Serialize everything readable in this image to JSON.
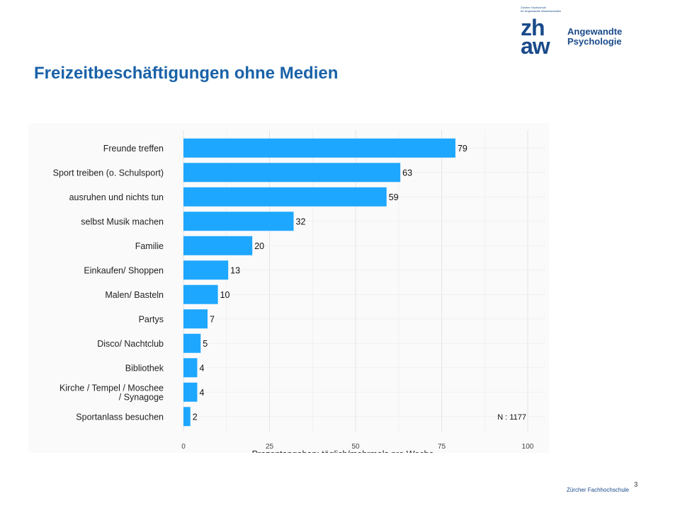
{
  "logo": {
    "small_line1": "Zürcher Hochschule",
    "small_line2": "für Angewandte Wissenschaften",
    "mark_line1": "zh",
    "mark_line2": "aw",
    "name_line1": "Angewandte",
    "name_line2": "Psychologie"
  },
  "slide": {
    "title": "Freizeitbeschäftigungen ohne Medien",
    "footer": "Zürcher Fachhochschule",
    "page_number": "3"
  },
  "colors": {
    "bar": "#1ea7ff",
    "title": "#1a62a8",
    "brand": "#1a4a8a"
  },
  "chart_data": {
    "type": "bar",
    "orientation": "horizontal",
    "categories": [
      "Freunde treffen",
      "Sport treiben (o. Schulsport)",
      "ausruhen und nichts tun",
      "selbst Musik machen",
      "Familie",
      "Einkaufen/ Shoppen",
      "Malen/ Basteln",
      "Partys",
      "Disco/ Nachtclub",
      "Bibliothek",
      "Kirche / Tempel / Moschee\n/ Synagoge",
      "Sportanlass besuchen"
    ],
    "values": [
      79,
      63,
      59,
      32,
      20,
      13,
      10,
      7,
      5,
      4,
      4,
      2
    ],
    "xlabel": "Prozentangaben: täglich/mehrmals pro Woche",
    "ylabel": "",
    "xlim": [
      0,
      100
    ],
    "xticks": [
      0,
      25,
      50,
      75,
      100
    ],
    "annotation": "N : 1177",
    "grid": true
  }
}
